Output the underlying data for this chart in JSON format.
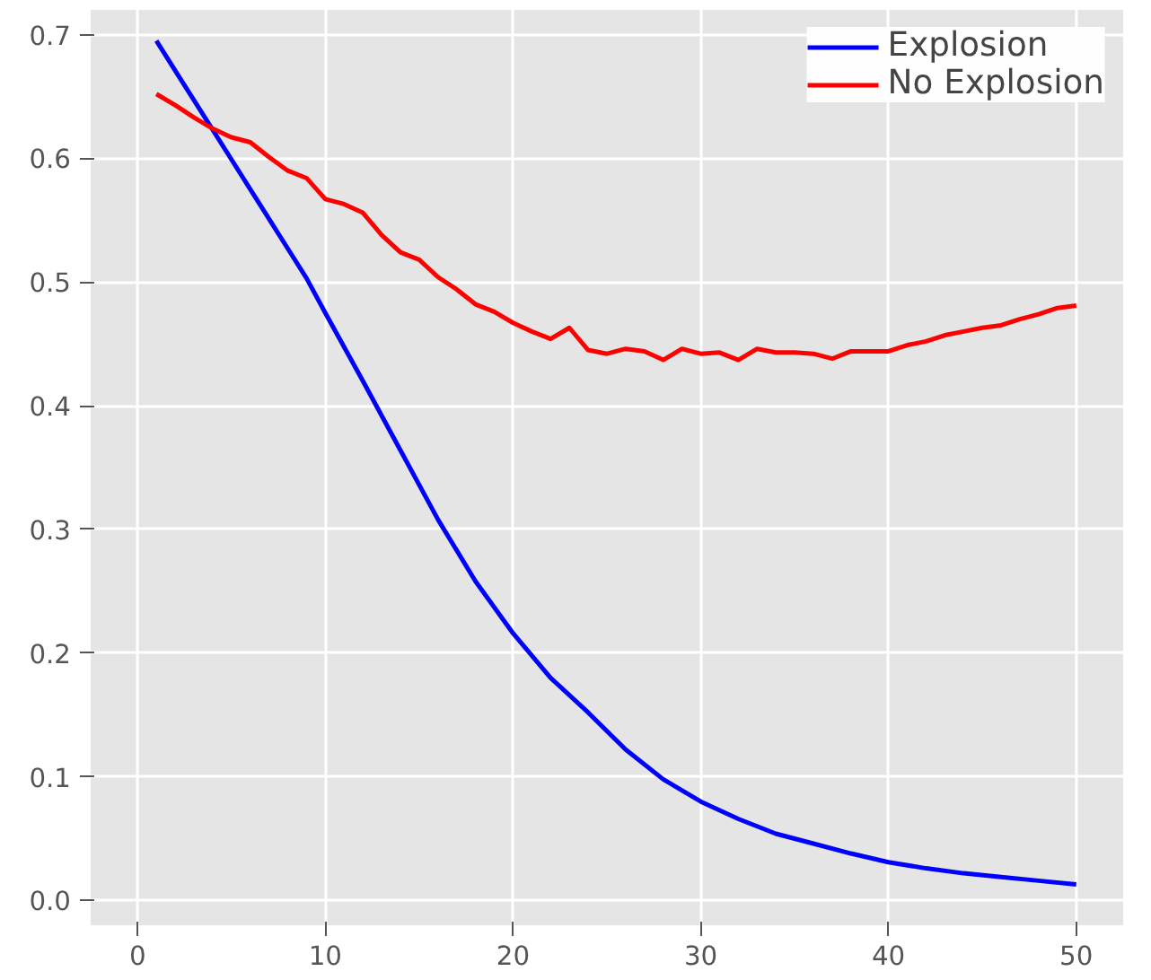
{
  "chart_data": {
    "type": "line",
    "xlim": [
      -2.5,
      52.5
    ],
    "ylim": [
      -0.02,
      0.72
    ],
    "xticks": [
      0,
      10,
      20,
      30,
      40,
      50
    ],
    "yticks": [
      {
        "value": 0,
        "label": "0.0"
      },
      0.1,
      0.2,
      0.3,
      0.4,
      0.5,
      0.6,
      0.7
    ],
    "grid": true,
    "legend": "top right",
    "series": [
      {
        "name": "Explosion",
        "color": "#0000ff",
        "x": [
          1,
          2,
          3,
          4,
          5,
          6,
          7,
          8,
          9,
          10,
          12,
          14,
          16,
          18,
          20,
          22,
          24,
          26,
          28,
          30,
          32,
          34,
          36,
          38,
          40,
          42,
          44,
          46,
          48,
          50
        ],
        "values": [
          0.695,
          0.671,
          0.647,
          0.623,
          0.599,
          0.575,
          0.551,
          0.527,
          0.503,
          0.475,
          0.42,
          0.364,
          0.308,
          0.258,
          0.216,
          0.18,
          0.152,
          0.122,
          0.098,
          0.08,
          0.066,
          0.054,
          0.046,
          0.038,
          0.031,
          0.026,
          0.022,
          0.019,
          0.016,
          0.013
        ]
      },
      {
        "name": "No Explosion",
        "color": "#ff0000",
        "x": [
          1,
          2,
          3,
          4,
          5,
          6,
          7,
          8,
          9,
          10,
          11,
          12,
          13,
          14,
          15,
          16,
          17,
          18,
          19,
          20,
          21,
          22,
          23,
          24,
          25,
          26,
          27,
          28,
          29,
          30,
          31,
          32,
          33,
          34,
          35,
          36,
          37,
          38,
          39,
          40,
          41,
          42,
          43,
          44,
          45,
          46,
          47,
          48,
          49,
          50
        ],
        "values": [
          0.652,
          0.643,
          0.633,
          0.624,
          0.617,
          0.613,
          0.601,
          0.59,
          0.584,
          0.567,
          0.563,
          0.556,
          0.538,
          0.524,
          0.518,
          0.504,
          0.494,
          0.482,
          0.476,
          0.467,
          0.46,
          0.454,
          0.463,
          0.445,
          0.442,
          0.446,
          0.444,
          0.437,
          0.446,
          0.442,
          0.443,
          0.437,
          0.446,
          0.443,
          0.443,
          0.442,
          0.438,
          0.444,
          0.444,
          0.444,
          0.449,
          0.452,
          0.457,
          0.46,
          0.463,
          0.465,
          0.47,
          0.474,
          0.479,
          0.481
        ]
      }
    ]
  }
}
